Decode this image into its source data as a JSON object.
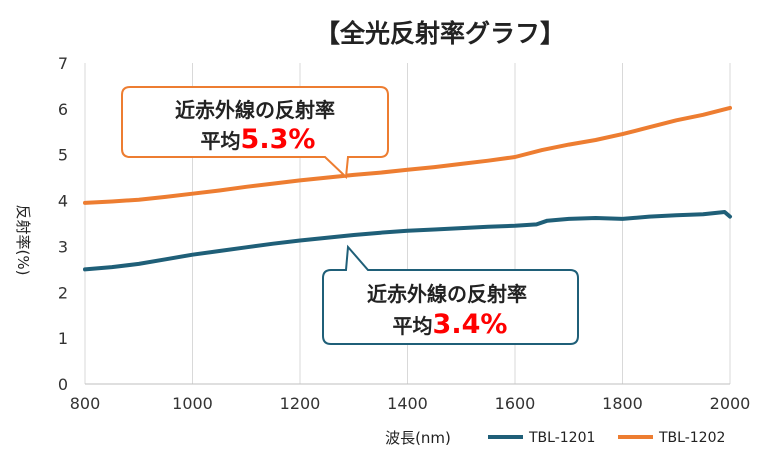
{
  "chart_data": {
    "type": "line",
    "title": "【全光反射率グラフ】",
    "xlabel": "波長(nm)",
    "ylabel": "反射率(%)",
    "xlim": [
      800,
      2000
    ],
    "ylim": [
      0,
      7
    ],
    "x_ticks": [
      800,
      1000,
      1200,
      1400,
      1600,
      1800,
      2000
    ],
    "y_ticks": [
      0,
      1,
      2,
      3,
      4,
      5,
      6,
      7
    ],
    "grid": "vertical",
    "legend_position": "bottom-right",
    "series": [
      {
        "name": "TBL-1201",
        "color": "#1f5f78",
        "x": [
          800,
          850,
          900,
          950,
          1000,
          1050,
          1100,
          1150,
          1200,
          1250,
          1300,
          1350,
          1400,
          1450,
          1500,
          1550,
          1600,
          1640,
          1660,
          1700,
          1750,
          1800,
          1850,
          1900,
          1950,
          1990,
          2000
        ],
        "values": [
          2.5,
          2.55,
          2.62,
          2.72,
          2.82,
          2.9,
          2.98,
          3.06,
          3.13,
          3.19,
          3.25,
          3.3,
          3.34,
          3.37,
          3.4,
          3.43,
          3.45,
          3.48,
          3.56,
          3.6,
          3.62,
          3.6,
          3.65,
          3.68,
          3.7,
          3.75,
          3.65
        ]
      },
      {
        "name": "TBL-1202",
        "color": "#ed7d31",
        "x": [
          800,
          850,
          900,
          950,
          1000,
          1050,
          1100,
          1150,
          1200,
          1250,
          1300,
          1350,
          1400,
          1450,
          1500,
          1550,
          1600,
          1650,
          1700,
          1750,
          1800,
          1850,
          1900,
          1950,
          2000
        ],
        "values": [
          3.95,
          3.98,
          4.02,
          4.08,
          4.15,
          4.22,
          4.3,
          4.37,
          4.44,
          4.5,
          4.56,
          4.61,
          4.67,
          4.73,
          4.8,
          4.87,
          4.95,
          5.1,
          5.22,
          5.32,
          5.45,
          5.6,
          5.75,
          5.87,
          6.02
        ]
      }
    ],
    "annotations": [
      {
        "line1": "近赤外線の反射率",
        "prefix": "平均",
        "value": "5.3%",
        "border": "#ed7d31",
        "value_color": "#ff0000"
      },
      {
        "line1": "近赤外線の反射率",
        "prefix": "平均",
        "value": "3.4%",
        "border": "#1f5f78",
        "value_color": "#ff0000"
      }
    ]
  }
}
